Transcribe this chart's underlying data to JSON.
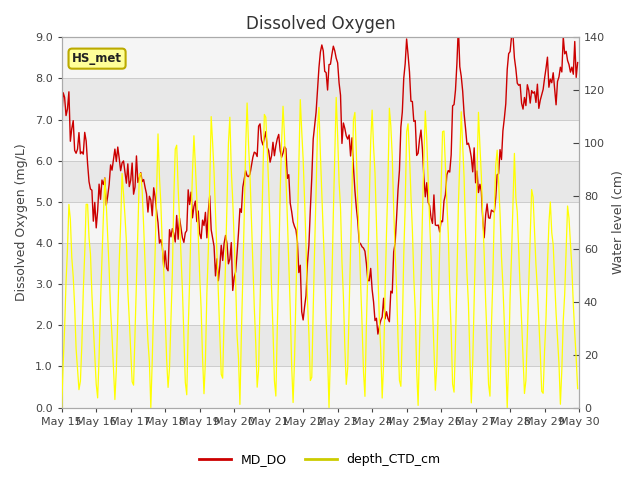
{
  "title": "Dissolved Oxygen",
  "ylabel_left": "Dissolved Oxygen (mg/L)",
  "ylabel_right": "Water level (cm)",
  "ylim_left": [
    0.0,
    9.0
  ],
  "ylim_right": [
    0,
    140
  ],
  "yticks_left": [
    0.0,
    1.0,
    2.0,
    3.0,
    4.0,
    5.0,
    6.0,
    7.0,
    8.0,
    9.0
  ],
  "yticks_right": [
    0,
    20,
    40,
    60,
    80,
    100,
    120,
    140
  ],
  "xtick_labels": [
    "May 15",
    "May 16",
    "May 17",
    "May 18",
    "May 19",
    "May 20",
    "May 21",
    "May 22",
    "May 23",
    "May 24",
    "May 25",
    "May 26",
    "May 27",
    "May 28",
    "May 29",
    "May 30"
  ],
  "annotation_text": "HS_met",
  "annotation_bg": "#ffff99",
  "annotation_border": "#bbaa00",
  "md_do_color": "#cc0000",
  "depth_ctd_color": "#ffff00",
  "depth_ctd_edge_color": "#aaaa00",
  "legend_md_do_color": "#cc0000",
  "legend_depth_color": "#cccc00",
  "grid_color": "#cccccc",
  "bg_color": "#ffffff",
  "band_light_color": "#f5f5f5",
  "band_dark_color": "#e8e8e8",
  "title_fontsize": 12,
  "axis_label_fontsize": 9,
  "tick_fontsize": 8,
  "figsize": [
    6.4,
    4.8
  ],
  "dpi": 100
}
